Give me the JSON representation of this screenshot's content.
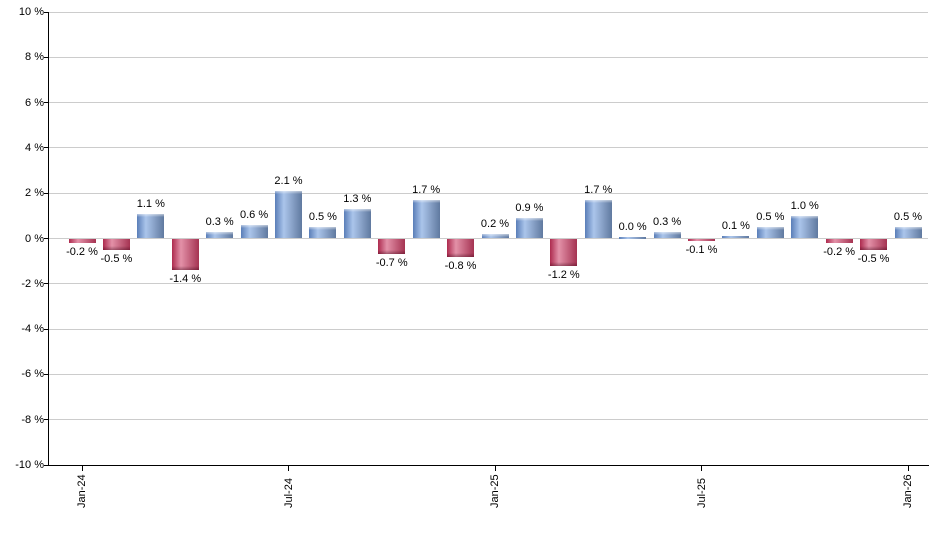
{
  "chart_data": {
    "type": "bar",
    "title": "",
    "xlabel": "",
    "ylabel": "",
    "unit": "%",
    "grid": true,
    "ylim": [
      -10,
      10
    ],
    "ytick_step": 2,
    "yticks": [
      {
        "value": 10,
        "label": "10 %"
      },
      {
        "value": 8,
        "label": "8 %"
      },
      {
        "value": 6,
        "label": "6 %"
      },
      {
        "value": 4,
        "label": "4 %"
      },
      {
        "value": 2,
        "label": "2 %"
      },
      {
        "value": 0,
        "label": "0 %"
      },
      {
        "value": -2,
        "label": "-2 %"
      },
      {
        "value": -4,
        "label": "-4 %"
      },
      {
        "value": -6,
        "label": "-6 %"
      },
      {
        "value": -8,
        "label": "-8 %"
      },
      {
        "value": -10,
        "label": "-10 %"
      }
    ],
    "n_bars": 25,
    "values": [
      -0.2,
      -0.5,
      1.1,
      -1.4,
      0.3,
      0.6,
      2.1,
      0.5,
      1.3,
      -0.7,
      1.7,
      -0.8,
      0.2,
      0.9,
      -1.2,
      1.7,
      0.0,
      0.3,
      -0.1,
      0.1,
      0.5,
      1.0,
      -0.2,
      -0.5,
      0.5
    ],
    "bar_labels": [
      "-0.2 %",
      "-0.5 %",
      "1.1 %",
      "-1.4 %",
      "0.3 %",
      "0.6 %",
      "2.1 %",
      "0.5 %",
      "1.3 %",
      "-0.7 %",
      "1.7 %",
      "-0.8 %",
      "0.2 %",
      "0.9 %",
      "-1.2 %",
      "1.7 %",
      "0.0 %",
      "0.3 %",
      "-0.1 %",
      "0.1 %",
      "0.5 %",
      "1.0 %",
      "-0.2 %",
      "-0.5 %",
      "0.5 %"
    ],
    "xticks": [
      {
        "index": 0,
        "label": "Jan-24"
      },
      {
        "index": 6,
        "label": "Jul-24"
      },
      {
        "index": 12,
        "label": "Jan-25"
      },
      {
        "index": 18,
        "label": "Jul-25"
      },
      {
        "index": 24,
        "label": "Jan-26"
      }
    ],
    "legend": null,
    "colors": {
      "positive_gradient": [
        "#5a7eb8",
        "#abc5eb",
        "#60799f"
      ],
      "negative_gradient": [
        "#ad2a4e",
        "#e391a8",
        "#a53352"
      ],
      "grid": "#cccccc",
      "axis": "#000000",
      "text": "#000000"
    }
  }
}
